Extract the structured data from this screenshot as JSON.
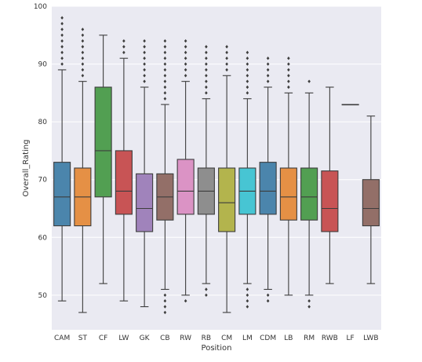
{
  "chart_data": {
    "type": "box",
    "xlabel": "Position",
    "ylabel": "Overall_Rating",
    "ylim": [
      44,
      100
    ],
    "yticks": [
      50,
      60,
      70,
      80,
      90,
      100
    ],
    "grid": true,
    "categories": [
      "CAM",
      "ST",
      "CF",
      "LW",
      "GK",
      "CB",
      "RW",
      "RB",
      "CM",
      "LM",
      "CDM",
      "LB",
      "RM",
      "RWB",
      "LF",
      "LWB"
    ],
    "boxes": [
      {
        "category": "CAM",
        "min": 49,
        "q1": 62,
        "median": 67,
        "q3": 73,
        "max": 89,
        "outliers": [
          90,
          91,
          92,
          93,
          94,
          95,
          96,
          97,
          98
        ],
        "color": "#3274a1"
      },
      {
        "category": "ST",
        "min": 47,
        "q1": 62,
        "median": 67,
        "q3": 72,
        "max": 87,
        "outliers": [
          88,
          89,
          90,
          91,
          92,
          93,
          94,
          95,
          96
        ],
        "color": "#e1812c"
      },
      {
        "category": "CF",
        "min": 52,
        "q1": 67,
        "median": 75,
        "q3": 86,
        "max": 95,
        "outliers": [],
        "color": "#3a923a"
      },
      {
        "category": "LW",
        "min": 49,
        "q1": 64,
        "median": 68,
        "q3": 75,
        "max": 91,
        "outliers": [
          92,
          93,
          94
        ],
        "color": "#c03d3e"
      },
      {
        "category": "GK",
        "min": 48,
        "q1": 61,
        "median": 65,
        "q3": 71,
        "max": 86,
        "outliers": [
          87,
          88,
          89,
          90,
          91,
          92,
          93,
          94
        ],
        "color": "#9372b2"
      },
      {
        "category": "CB",
        "min": 51,
        "q1": 63,
        "median": 67,
        "q3": 71,
        "max": 83,
        "outliers": [
          47,
          48,
          49,
          50,
          84,
          85,
          86,
          87,
          88,
          89,
          90,
          91,
          92,
          93,
          94
        ],
        "color": "#845b53"
      },
      {
        "category": "RW",
        "min": 50,
        "q1": 64,
        "median": 68,
        "q3": 73.5,
        "max": 87,
        "outliers": [
          49,
          88,
          89,
          90,
          91,
          92,
          93,
          94
        ],
        "color": "#d684bd"
      },
      {
        "category": "RB",
        "min": 52,
        "q1": 64,
        "median": 68,
        "q3": 72,
        "max": 84,
        "outliers": [
          50,
          51,
          85,
          86,
          87,
          88,
          89,
          90,
          91,
          92,
          93
        ],
        "color": "#7f7f7f"
      },
      {
        "category": "CM",
        "min": 47,
        "q1": 61,
        "median": 66,
        "q3": 72,
        "max": 88,
        "outliers": [
          89,
          90,
          91,
          92,
          93
        ],
        "color": "#a9aa35"
      },
      {
        "category": "LM",
        "min": 52,
        "q1": 64,
        "median": 68,
        "q3": 72,
        "max": 84,
        "outliers": [
          48,
          49,
          50,
          51,
          85,
          86,
          87,
          88,
          89,
          90,
          91,
          92
        ],
        "color": "#2ebdcd"
      },
      {
        "category": "CDM",
        "min": 51,
        "q1": 64,
        "median": 68,
        "q3": 73,
        "max": 86,
        "outliers": [
          49,
          50,
          87,
          88,
          89,
          90,
          91
        ],
        "color": "#3274a1"
      },
      {
        "category": "LB",
        "min": 50,
        "q1": 63,
        "median": 67,
        "q3": 72,
        "max": 85,
        "outliers": [
          86,
          87,
          88,
          89,
          90,
          91
        ],
        "color": "#e1812c"
      },
      {
        "category": "RM",
        "min": 50,
        "q1": 63,
        "median": 67,
        "q3": 72,
        "max": 85,
        "outliers": [
          48,
          49,
          87
        ],
        "color": "#3a923a"
      },
      {
        "category": "RWB",
        "min": 52,
        "q1": 61,
        "median": 65,
        "q3": 71.5,
        "max": 86,
        "outliers": [],
        "color": "#c03d3e"
      },
      {
        "category": "LF",
        "min": 83,
        "q1": 83,
        "median": 83,
        "q3": 83,
        "max": 83,
        "outliers": [],
        "color": "#9372b2"
      },
      {
        "category": "LWB",
        "min": 52,
        "q1": 62,
        "median": 65,
        "q3": 70,
        "max": 81,
        "outliers": [],
        "color": "#845b53"
      }
    ],
    "style": {
      "background": "#eaeaf2",
      "grid_color": "#ffffff",
      "line_color": "#3d3d3d"
    }
  }
}
